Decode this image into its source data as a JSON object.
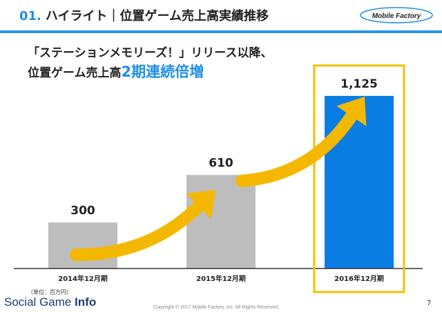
{
  "header": {
    "number": "01.",
    "title": "ハイライト｜位置ゲーム売上高実績推移",
    "logo_text": "Mobile Factory"
  },
  "lead": {
    "line1": "「ステーションメモリーズ！」リリース以降、",
    "line2_prefix": "位置ゲーム売上高",
    "line2_highlight": "2期連続倍増"
  },
  "chart_data": {
    "type": "bar",
    "categories": [
      "2014年12月期",
      "2015年12月期",
      "2016年12月期"
    ],
    "values": [
      300,
      610,
      1125
    ],
    "value_labels": [
      "300",
      "610",
      "1,125"
    ],
    "ylim": [
      0,
      1300
    ],
    "colors": [
      "#bdbdbd",
      "#bdbdbd",
      "#0a7de3"
    ],
    "highlight_color": "#f2c000",
    "arrow_color": "#f5b800",
    "highlighted_index": 2
  },
  "footer": {
    "unit": "（単位：百万円）",
    "brand_regular": "Social Game ",
    "brand_bold": "Info",
    "copyright": "Copyright © 2017 Mobile Factory, Inc. All Rights Reserved.",
    "page": "7"
  }
}
